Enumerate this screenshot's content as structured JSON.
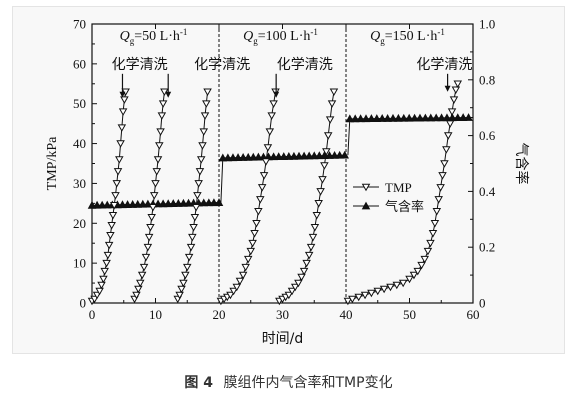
{
  "chart_data": {
    "type": "line",
    "xlabel": "时间/d",
    "ylabel_left": "TMP/kPa",
    "ylabel_right": "气含率",
    "xlim": [
      0,
      60
    ],
    "ylim_left": [
      0,
      70
    ],
    "ylim_right": [
      0,
      1.0
    ],
    "x_ticks": [
      "0",
      "10",
      "20",
      "30",
      "40",
      "50",
      "60"
    ],
    "y_left_ticks": [
      "0",
      "10",
      "20",
      "30",
      "40",
      "50",
      "60",
      "70"
    ],
    "y_right_ticks": [
      "0",
      "0.2",
      "0.4",
      "0.6",
      "0.8",
      "1.0"
    ],
    "grid": false,
    "legend_position": "center-right",
    "dividers_x": [
      20,
      40
    ],
    "stage_labels": [
      {
        "var": "Q",
        "sub": "g",
        "text": "=50 L·h",
        "sup": "-1"
      },
      {
        "var": "Q",
        "sub": "g",
        "text": "=100 L·h",
        "sup": "-1"
      },
      {
        "var": "Q",
        "sub": "g",
        "text": "=150 L·h",
        "sup": "-1"
      }
    ],
    "annotation_text": "化学清洗",
    "annotations": [
      {
        "x": 7.5,
        "y": 60
      },
      {
        "x": 20.5,
        "y": 60
      },
      {
        "x": 33.5,
        "y": 60
      },
      {
        "x": 55.5,
        "y": 60
      }
    ],
    "cleaning_arrows": [
      {
        "x": 4.8,
        "y_tip": 51.5
      },
      {
        "x": 12.0,
        "y_tip": 51.5
      },
      {
        "x": 29.0,
        "y_tip": 51.5
      },
      {
        "x": 56.0,
        "y_tip": 53
      }
    ],
    "series": [
      {
        "name": "TMP",
        "axis": "left",
        "marker": "triangle-down-open",
        "segments": [
          [
            [
              0,
              0.5
            ],
            [
              0.4,
              1
            ],
            [
              0.8,
              2
            ],
            [
              1.2,
              3
            ],
            [
              1.5,
              4.5
            ],
            [
              1.8,
              6
            ],
            [
              2.0,
              8
            ],
            [
              2.3,
              10
            ],
            [
              2.5,
              12
            ],
            [
              2.7,
              14.5
            ],
            [
              2.9,
              17
            ],
            [
              3.1,
              19.5
            ],
            [
              3.3,
              22
            ],
            [
              3.5,
              24.5
            ],
            [
              3.7,
              27
            ],
            [
              3.9,
              30
            ],
            [
              4.1,
              33
            ],
            [
              4.3,
              36
            ],
            [
              4.5,
              40
            ],
            [
              4.7,
              44
            ],
            [
              4.9,
              48
            ],
            [
              5.1,
              51
            ],
            [
              5.3,
              53
            ]
          ],
          [
            [
              6.7,
              1
            ],
            [
              7.0,
              2
            ],
            [
              7.3,
              3.5
            ],
            [
              7.6,
              5
            ],
            [
              7.9,
              7
            ],
            [
              8.2,
              9
            ],
            [
              8.5,
              11.5
            ],
            [
              8.8,
              14
            ],
            [
              9.0,
              16.5
            ],
            [
              9.2,
              19
            ],
            [
              9.4,
              21.5
            ],
            [
              9.6,
              24
            ],
            [
              9.8,
              27
            ],
            [
              10.0,
              30
            ],
            [
              10.2,
              33
            ],
            [
              10.4,
              36
            ],
            [
              10.6,
              39.5
            ],
            [
              10.8,
              43
            ],
            [
              11.0,
              47
            ],
            [
              11.2,
              50
            ],
            [
              11.4,
              53
            ]
          ],
          [
            [
              13.5,
              1
            ],
            [
              13.8,
              2
            ],
            [
              14.1,
              3.5
            ],
            [
              14.4,
              5
            ],
            [
              14.7,
              7
            ],
            [
              15.0,
              9
            ],
            [
              15.3,
              11.5
            ],
            [
              15.6,
              14
            ],
            [
              15.8,
              16.5
            ],
            [
              16.0,
              19
            ],
            [
              16.2,
              21.5
            ],
            [
              16.4,
              24
            ],
            [
              16.6,
              27
            ],
            [
              16.8,
              30
            ],
            [
              17.0,
              33
            ],
            [
              17.2,
              36
            ],
            [
              17.4,
              39.5
            ],
            [
              17.6,
              43
            ],
            [
              17.8,
              47
            ],
            [
              18.0,
              50
            ],
            [
              18.2,
              53
            ]
          ],
          [
            [
              20.3,
              0.5
            ],
            [
              20.8,
              1
            ],
            [
              21.3,
              1.5
            ],
            [
              21.8,
              2
            ],
            [
              22.3,
              3
            ],
            [
              22.8,
              4
            ],
            [
              23.3,
              5.5
            ],
            [
              23.8,
              7
            ],
            [
              24.2,
              9
            ],
            [
              24.6,
              11
            ],
            [
              25.0,
              13
            ],
            [
              25.3,
              15
            ],
            [
              25.6,
              17.5
            ],
            [
              25.9,
              20
            ],
            [
              26.2,
              23
            ],
            [
              26.5,
              26
            ],
            [
              26.8,
              29
            ],
            [
              27.1,
              32
            ],
            [
              27.4,
              35.5
            ],
            [
              27.7,
              39
            ],
            [
              28.0,
              43
            ],
            [
              28.3,
              47
            ],
            [
              28.6,
              50
            ],
            [
              28.9,
              53
            ]
          ],
          [
            [
              29.5,
              0.5
            ],
            [
              30.0,
              1
            ],
            [
              30.5,
              1.5
            ],
            [
              31.0,
              2
            ],
            [
              31.5,
              3
            ],
            [
              32.0,
              4
            ],
            [
              32.5,
              5
            ],
            [
              33.0,
              6.5
            ],
            [
              33.4,
              8
            ],
            [
              33.8,
              10
            ],
            [
              34.2,
              12
            ],
            [
              34.5,
              14
            ],
            [
              34.8,
              16.5
            ],
            [
              35.1,
              19
            ],
            [
              35.4,
              22
            ],
            [
              35.7,
              25
            ],
            [
              36.0,
              28
            ],
            [
              36.3,
              31
            ],
            [
              36.6,
              34.5
            ],
            [
              36.9,
              38
            ],
            [
              37.2,
              42
            ],
            [
              37.5,
              46
            ],
            [
              37.8,
              50
            ],
            [
              38.1,
              53
            ]
          ],
          [
            [
              40.3,
              0.5
            ],
            [
              41,
              1
            ],
            [
              42,
              1.5
            ],
            [
              43,
              2
            ],
            [
              44,
              2.5
            ],
            [
              45,
              3
            ],
            [
              46,
              3.5
            ],
            [
              47,
              4
            ],
            [
              48,
              4.5
            ],
            [
              49,
              5
            ],
            [
              50,
              6
            ],
            [
              50.7,
              7
            ],
            [
              51.3,
              8
            ],
            [
              51.9,
              9.5
            ],
            [
              52.4,
              11
            ],
            [
              52.9,
              13
            ],
            [
              53.3,
              15
            ],
            [
              53.7,
              17.5
            ],
            [
              54.0,
              20
            ],
            [
              54.3,
              23
            ],
            [
              54.6,
              26
            ],
            [
              54.9,
              29
            ],
            [
              55.2,
              32
            ],
            [
              55.5,
              35
            ],
            [
              55.8,
              38.5
            ],
            [
              56.1,
              42
            ],
            [
              56.4,
              45
            ],
            [
              56.7,
              48
            ],
            [
              57.0,
              51
            ],
            [
              57.3,
              53.5
            ],
            [
              57.6,
              55
            ]
          ]
        ]
      },
      {
        "name": "气含率",
        "axis": "right",
        "marker": "triangle-up-filled",
        "segments": [
          [
            [
              0,
              0.35
            ],
            [
              20,
              0.36
            ]
          ],
          [
            [
              20.3,
              0.36
            ],
            [
              20.6,
              0.52
            ],
            [
              40,
              0.53
            ]
          ],
          [
            [
              40.3,
              0.53
            ],
            [
              40.6,
              0.66
            ],
            [
              60,
              0.665
            ]
          ]
        ],
        "marker_x_steps": [
          0.8,
          0.8,
          0.85
        ]
      }
    ]
  },
  "caption": {
    "figure_label": "图 4",
    "title": "膜组件内气含率和TMP变化"
  }
}
